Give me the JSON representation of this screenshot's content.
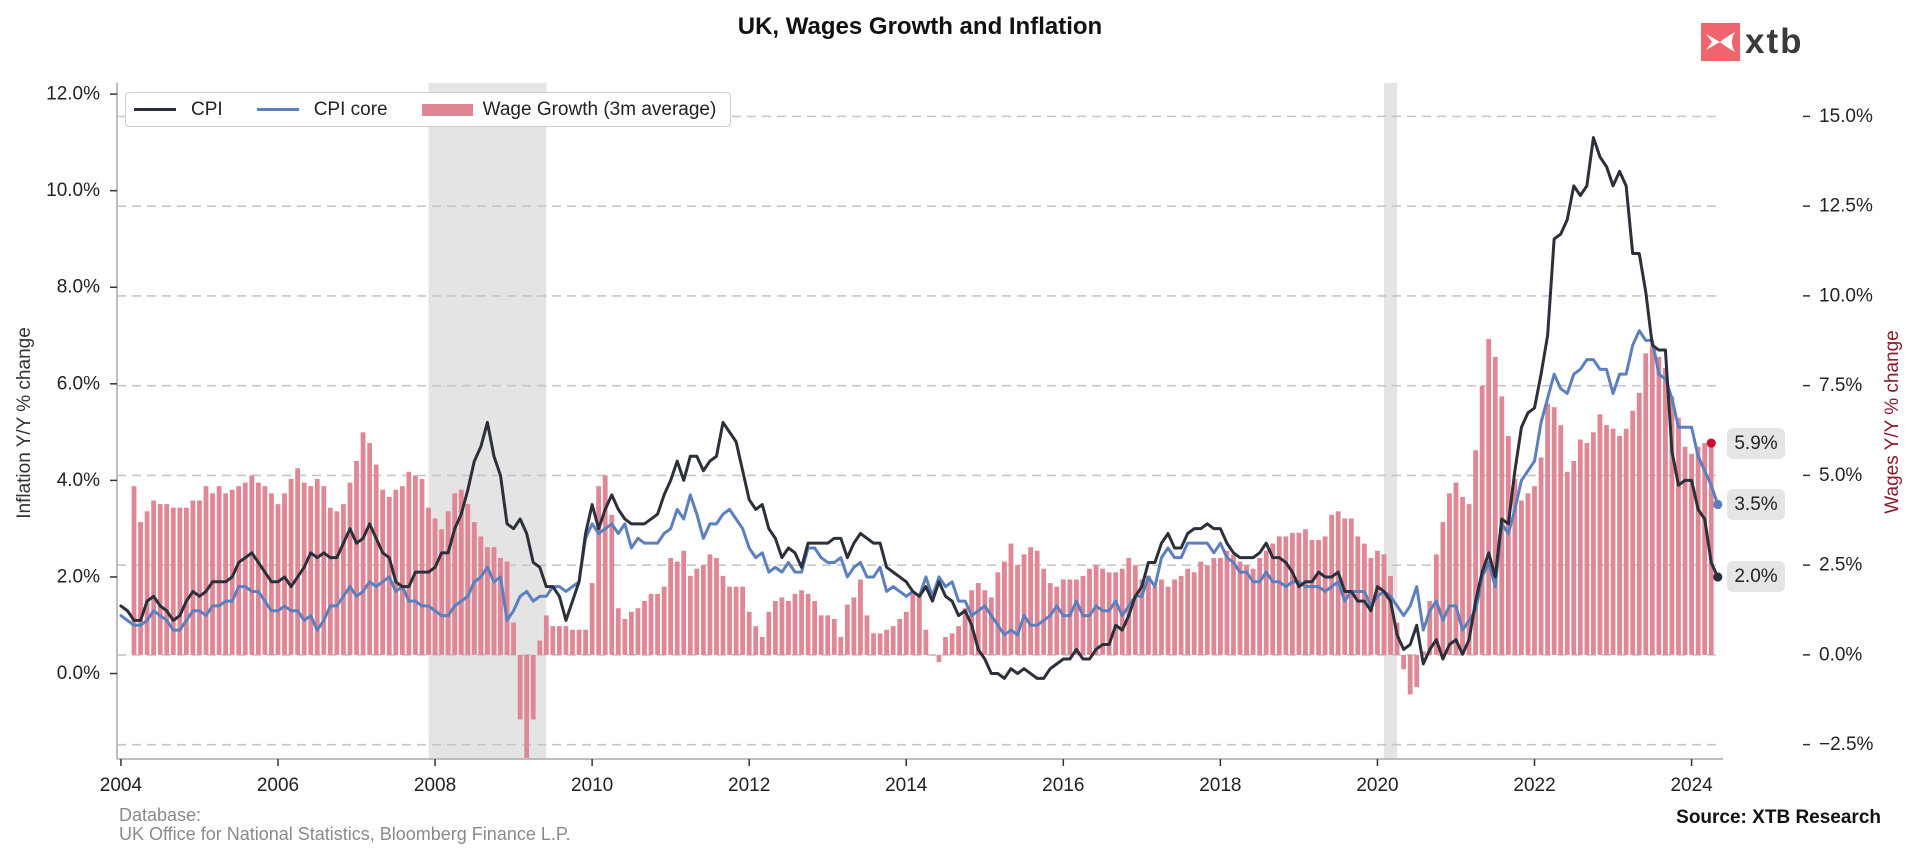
{
  "title": "UK, Wages Growth and Inflation",
  "logo": {
    "text": "xtb",
    "icon": "xtb-logo-icon",
    "color": "#f0646d"
  },
  "footer": {
    "database_label": "Database:",
    "database_sources": "UK Office for National Statistics, Bloomberg Finance L.P.",
    "source": "Source: XTB Research"
  },
  "chart_data": {
    "type": "line",
    "title": "UK, Wages Growth and Inflation",
    "xlabel": "",
    "ylabel": "Inflation Y/Y % change",
    "ylabel_right": "Wages Y/Y % change",
    "ylabel_right_color": "#8b1a2b",
    "xlim": [
      2003.95,
      2024.4
    ],
    "ylim_left": [
      -1.77,
      12.23
    ],
    "ylim_right": [
      -2.9,
      15.93
    ],
    "grid": "horizontal dashed lines at right-axis ticks",
    "legend_position": "top-left",
    "shade_color": "#e4e4e4",
    "shaded_periods": [
      {
        "start": "2007-12",
        "end": "2009-06"
      },
      {
        "start": "2020-02",
        "end": "2020-04"
      }
    ],
    "xticks": [
      {
        "value": 2004,
        "label": "2004"
      },
      {
        "value": 2006,
        "label": "2006"
      },
      {
        "value": 2008,
        "label": "2008"
      },
      {
        "value": 2010,
        "label": "2010"
      },
      {
        "value": 2012,
        "label": "2012"
      },
      {
        "value": 2014,
        "label": "2014"
      },
      {
        "value": 2016,
        "label": "2016"
      },
      {
        "value": 2018,
        "label": "2018"
      },
      {
        "value": 2020,
        "label": "2020"
      },
      {
        "value": 2022,
        "label": "2022"
      },
      {
        "value": 2024,
        "label": "2024"
      }
    ],
    "yticks_left": [
      {
        "value": 12,
        "label": "12.0%"
      },
      {
        "value": 10,
        "label": "10.0%"
      },
      {
        "value": 8,
        "label": "8.0%"
      },
      {
        "value": 6,
        "label": "6.0%"
      },
      {
        "value": 4,
        "label": "4.0%"
      },
      {
        "value": 2,
        "label": "2.0%"
      },
      {
        "value": 0,
        "label": "0.0%"
      }
    ],
    "yticks_right": [
      {
        "value": 15,
        "label": "15.0%"
      },
      {
        "value": 12.5,
        "label": "12.5%"
      },
      {
        "value": 10,
        "label": "10.0%"
      },
      {
        "value": 7.5,
        "label": "7.5%"
      },
      {
        "value": 5,
        "label": "5.0%"
      },
      {
        "value": 2.5,
        "label": "2.5%"
      },
      {
        "value": 0,
        "label": "0.0%"
      },
      {
        "value": -2.5,
        "label": "−2.5%"
      }
    ],
    "x": [
      "2004-01",
      "2004-02",
      "2004-03",
      "2004-04",
      "2004-05",
      "2004-06",
      "2004-07",
      "2004-08",
      "2004-09",
      "2004-10",
      "2004-11",
      "2004-12",
      "2005-01",
      "2005-02",
      "2005-03",
      "2005-04",
      "2005-05",
      "2005-06",
      "2005-07",
      "2005-08",
      "2005-09",
      "2005-10",
      "2005-11",
      "2005-12",
      "2006-01",
      "2006-02",
      "2006-03",
      "2006-04",
      "2006-05",
      "2006-06",
      "2006-07",
      "2006-08",
      "2006-09",
      "2006-10",
      "2006-11",
      "2006-12",
      "2007-01",
      "2007-02",
      "2007-03",
      "2007-04",
      "2007-05",
      "2007-06",
      "2007-07",
      "2007-08",
      "2007-09",
      "2007-10",
      "2007-11",
      "2007-12",
      "2008-01",
      "2008-02",
      "2008-03",
      "2008-04",
      "2008-05",
      "2008-06",
      "2008-07",
      "2008-08",
      "2008-09",
      "2008-10",
      "2008-11",
      "2008-12",
      "2009-01",
      "2009-02",
      "2009-03",
      "2009-04",
      "2009-05",
      "2009-06",
      "2009-07",
      "2009-08",
      "2009-09",
      "2009-10",
      "2009-11",
      "2009-12",
      "2010-01",
      "2010-02",
      "2010-03",
      "2010-04",
      "2010-05",
      "2010-06",
      "2010-07",
      "2010-08",
      "2010-09",
      "2010-10",
      "2010-11",
      "2010-12",
      "2011-01",
      "2011-02",
      "2011-03",
      "2011-04",
      "2011-05",
      "2011-06",
      "2011-07",
      "2011-08",
      "2011-09",
      "2011-10",
      "2011-11",
      "2011-12",
      "2012-01",
      "2012-02",
      "2012-03",
      "2012-04",
      "2012-05",
      "2012-06",
      "2012-07",
      "2012-08",
      "2012-09",
      "2012-10",
      "2012-11",
      "2012-12",
      "2013-01",
      "2013-02",
      "2013-03",
      "2013-04",
      "2013-05",
      "2013-06",
      "2013-07",
      "2013-08",
      "2013-09",
      "2013-10",
      "2013-11",
      "2013-12",
      "2014-01",
      "2014-02",
      "2014-03",
      "2014-04",
      "2014-05",
      "2014-06",
      "2014-07",
      "2014-08",
      "2014-09",
      "2014-10",
      "2014-11",
      "2014-12",
      "2015-01",
      "2015-02",
      "2015-03",
      "2015-04",
      "2015-05",
      "2015-06",
      "2015-07",
      "2015-08",
      "2015-09",
      "2015-10",
      "2015-11",
      "2015-12",
      "2016-01",
      "2016-02",
      "2016-03",
      "2016-04",
      "2016-05",
      "2016-06",
      "2016-07",
      "2016-08",
      "2016-09",
      "2016-10",
      "2016-11",
      "2016-12",
      "2017-01",
      "2017-02",
      "2017-03",
      "2017-04",
      "2017-05",
      "2017-06",
      "2017-07",
      "2017-08",
      "2017-09",
      "2017-10",
      "2017-11",
      "2017-12",
      "2018-01",
      "2018-02",
      "2018-03",
      "2018-04",
      "2018-05",
      "2018-06",
      "2018-07",
      "2018-08",
      "2018-09",
      "2018-10",
      "2018-11",
      "2018-12",
      "2019-01",
      "2019-02",
      "2019-03",
      "2019-04",
      "2019-05",
      "2019-06",
      "2019-07",
      "2019-08",
      "2019-09",
      "2019-10",
      "2019-11",
      "2019-12",
      "2020-01",
      "2020-02",
      "2020-03",
      "2020-04",
      "2020-05",
      "2020-06",
      "2020-07",
      "2020-08",
      "2020-09",
      "2020-10",
      "2020-11",
      "2020-12",
      "2021-01",
      "2021-02",
      "2021-03",
      "2021-04",
      "2021-05",
      "2021-06",
      "2021-07",
      "2021-08",
      "2021-09",
      "2021-10",
      "2021-11",
      "2021-12",
      "2022-01",
      "2022-02",
      "2022-03",
      "2022-04",
      "2022-05",
      "2022-06",
      "2022-07",
      "2022-08",
      "2022-09",
      "2022-10",
      "2022-11",
      "2022-12",
      "2023-01",
      "2023-02",
      "2023-03",
      "2023-04",
      "2023-05",
      "2023-06",
      "2023-07",
      "2023-08",
      "2023-09",
      "2023-10",
      "2023-11",
      "2023-12",
      "2024-01",
      "2024-02",
      "2024-03",
      "2024-04",
      "2024-05"
    ],
    "series": [
      {
        "name": "CPI",
        "type": "line",
        "axis": "left",
        "color": "#2b303b",
        "end_marker_color": "#2b303b",
        "values": [
          1.4,
          1.3,
          1.1,
          1.1,
          1.5,
          1.6,
          1.4,
          1.3,
          1.1,
          1.2,
          1.5,
          1.7,
          1.6,
          1.7,
          1.9,
          1.9,
          1.9,
          2.0,
          2.3,
          2.4,
          2.5,
          2.3,
          2.1,
          1.9,
          1.9,
          2.0,
          1.8,
          2.0,
          2.2,
          2.5,
          2.4,
          2.5,
          2.4,
          2.4,
          2.7,
          3.0,
          2.7,
          2.8,
          3.1,
          2.8,
          2.5,
          2.4,
          1.9,
          1.8,
          1.8,
          2.1,
          2.1,
          2.1,
          2.2,
          2.5,
          2.5,
          3.0,
          3.3,
          3.8,
          4.4,
          4.7,
          5.2,
          4.5,
          4.1,
          3.1,
          3.0,
          3.2,
          2.9,
          2.3,
          2.2,
          1.8,
          1.8,
          1.6,
          1.1,
          1.5,
          1.9,
          2.9,
          3.5,
          3.0,
          3.4,
          3.7,
          3.4,
          3.2,
          3.1,
          3.1,
          3.1,
          3.2,
          3.3,
          3.7,
          4.0,
          4.4,
          4.0,
          4.5,
          4.5,
          4.2,
          4.4,
          4.5,
          5.2,
          5.0,
          4.8,
          4.2,
          3.6,
          3.4,
          3.5,
          3.0,
          2.8,
          2.4,
          2.6,
          2.5,
          2.2,
          2.7,
          2.7,
          2.7,
          2.7,
          2.8,
          2.8,
          2.4,
          2.7,
          2.9,
          2.8,
          2.7,
          2.7,
          2.2,
          2.1,
          2.0,
          1.9,
          1.7,
          1.6,
          1.8,
          1.5,
          1.9,
          1.6,
          1.5,
          1.2,
          1.3,
          1.0,
          0.5,
          0.3,
          0.0,
          0.0,
          -0.1,
          0.1,
          0.0,
          0.1,
          0.0,
          -0.1,
          -0.1,
          0.1,
          0.2,
          0.3,
          0.3,
          0.5,
          0.3,
          0.3,
          0.5,
          0.6,
          0.6,
          1.0,
          0.9,
          1.2,
          1.6,
          1.8,
          2.3,
          2.3,
          2.7,
          2.9,
          2.6,
          2.6,
          2.9,
          3.0,
          3.0,
          3.1,
          3.0,
          3.0,
          2.7,
          2.5,
          2.4,
          2.4,
          2.4,
          2.5,
          2.7,
          2.4,
          2.4,
          2.3,
          2.1,
          1.8,
          1.9,
          1.9,
          2.1,
          2.0,
          2.0,
          2.1,
          1.7,
          1.7,
          1.5,
          1.5,
          1.3,
          1.8,
          1.7,
          1.5,
          0.8,
          0.5,
          0.6,
          1.0,
          0.2,
          0.5,
          0.7,
          0.3,
          0.6,
          0.7,
          0.4,
          0.7,
          1.5,
          2.1,
          2.5,
          2.0,
          3.2,
          3.1,
          4.2,
          5.1,
          5.4,
          5.5,
          6.2,
          7.0,
          9.0,
          9.1,
          9.4,
          10.1,
          9.9,
          10.1,
          11.1,
          10.7,
          10.5,
          10.1,
          10.4,
          10.1,
          8.7,
          8.7,
          7.9,
          6.8,
          6.7,
          6.7,
          4.6,
          3.9,
          4.0,
          4.0,
          3.4,
          3.2,
          2.3,
          2.0
        ]
      },
      {
        "name": "CPI core",
        "type": "line",
        "axis": "left",
        "color": "#5b80bd",
        "end_marker_color": "#5b80bd",
        "values": [
          1.2,
          1.1,
          1.0,
          1.0,
          1.1,
          1.3,
          1.2,
          1.1,
          0.9,
          0.9,
          1.1,
          1.3,
          1.3,
          1.2,
          1.4,
          1.4,
          1.5,
          1.5,
          1.8,
          1.8,
          1.7,
          1.7,
          1.5,
          1.3,
          1.3,
          1.4,
          1.3,
          1.3,
          1.1,
          1.2,
          0.9,
          1.1,
          1.4,
          1.4,
          1.6,
          1.8,
          1.6,
          1.7,
          1.9,
          1.8,
          1.9,
          2.0,
          1.7,
          1.8,
          1.5,
          1.5,
          1.4,
          1.4,
          1.3,
          1.2,
          1.2,
          1.4,
          1.5,
          1.6,
          1.9,
          2.0,
          2.2,
          1.9,
          2.0,
          1.1,
          1.3,
          1.6,
          1.7,
          1.5,
          1.6,
          1.6,
          1.8,
          1.8,
          1.7,
          1.8,
          1.9,
          2.8,
          3.1,
          2.9,
          3.0,
          3.1,
          2.9,
          3.1,
          2.6,
          2.8,
          2.7,
          2.7,
          2.7,
          2.9,
          3.0,
          3.4,
          3.2,
          3.7,
          3.3,
          2.8,
          3.1,
          3.1,
          3.3,
          3.4,
          3.2,
          3.0,
          2.6,
          2.4,
          2.5,
          2.1,
          2.2,
          2.1,
          2.3,
          2.1,
          2.1,
          2.6,
          2.6,
          2.4,
          2.3,
          2.3,
          2.4,
          2.0,
          2.2,
          2.3,
          2.0,
          2.0,
          2.2,
          1.7,
          1.8,
          1.7,
          1.6,
          1.7,
          1.6,
          2.0,
          1.6,
          2.0,
          1.8,
          1.9,
          1.5,
          1.5,
          1.2,
          1.3,
          1.4,
          1.2,
          1.0,
          0.8,
          0.9,
          0.8,
          1.2,
          1.0,
          1.0,
          1.1,
          1.2,
          1.4,
          1.2,
          1.2,
          1.5,
          1.2,
          1.2,
          1.4,
          1.3,
          1.3,
          1.5,
          1.2,
          1.4,
          1.6,
          1.6,
          2.0,
          1.8,
          2.4,
          2.6,
          2.4,
          2.4,
          2.7,
          2.7,
          2.7,
          2.7,
          2.5,
          2.7,
          2.4,
          2.3,
          2.1,
          2.1,
          1.9,
          1.9,
          2.1,
          1.9,
          1.9,
          1.8,
          1.9,
          1.9,
          1.8,
          1.8,
          1.8,
          1.7,
          1.8,
          1.9,
          1.5,
          1.7,
          1.7,
          1.7,
          1.4,
          1.6,
          1.7,
          1.6,
          1.4,
          1.2,
          1.4,
          1.8,
          0.9,
          1.3,
          1.5,
          1.1,
          1.4,
          1.4,
          0.9,
          1.1,
          1.3,
          2.0,
          2.3,
          1.8,
          3.1,
          2.9,
          3.4,
          4.0,
          4.2,
          4.4,
          5.2,
          5.7,
          6.2,
          5.9,
          5.8,
          6.2,
          6.3,
          6.5,
          6.5,
          6.3,
          6.3,
          5.8,
          6.2,
          6.2,
          6.8,
          7.1,
          6.9,
          6.9,
          6.2,
          6.1,
          5.7,
          5.1,
          5.1,
          5.1,
          4.5,
          4.2,
          3.9,
          3.5
        ]
      },
      {
        "name": "Wage Growth (3m average)",
        "type": "bar",
        "axis": "right",
        "color": "#df8795",
        "end_marker_color": "#c8102e",
        "values": [
          null,
          null,
          4.7,
          3.7,
          4.0,
          4.3,
          4.2,
          4.2,
          4.1,
          4.1,
          4.1,
          4.3,
          4.3,
          4.7,
          4.5,
          4.7,
          4.5,
          4.6,
          4.7,
          4.8,
          5.0,
          4.8,
          4.7,
          4.5,
          4.2,
          4.5,
          4.9,
          5.2,
          4.8,
          4.7,
          4.9,
          4.7,
          4.1,
          4.0,
          4.2,
          4.8,
          5.4,
          6.2,
          5.9,
          5.3,
          4.6,
          4.4,
          4.6,
          4.7,
          5.1,
          5.0,
          4.9,
          4.1,
          3.8,
          3.5,
          4.0,
          4.5,
          4.6,
          4.2,
          3.7,
          3.3,
          3.0,
          3.0,
          2.7,
          2.6,
          0.9,
          -1.8,
          -3.0,
          -1.8,
          0.4,
          1.1,
          0.8,
          0.8,
          0.8,
          0.7,
          0.7,
          0.7,
          2.0,
          4.7,
          5.0,
          3.9,
          1.3,
          1.0,
          1.2,
          1.3,
          1.5,
          1.7,
          1.7,
          1.9,
          2.7,
          2.6,
          2.9,
          2.2,
          2.4,
          2.5,
          2.8,
          2.7,
          2.2,
          1.9,
          1.9,
          1.9,
          1.2,
          0.8,
          0.5,
          1.2,
          1.5,
          1.6,
          1.5,
          1.7,
          1.8,
          1.7,
          1.5,
          1.1,
          1.1,
          1.0,
          0.5,
          1.4,
          1.6,
          2.1,
          1.1,
          0.6,
          0.6,
          0.7,
          0.8,
          1.0,
          1.2,
          1.7,
          1.7,
          0.7,
          0.0,
          -0.2,
          0.5,
          0.6,
          0.8,
          1.3,
          1.8,
          2.0,
          1.8,
          1.6,
          2.3,
          2.6,
          3.1,
          2.5,
          2.8,
          3.0,
          2.9,
          2.4,
          2.0,
          1.9,
          2.1,
          2.1,
          2.1,
          2.2,
          2.4,
          2.5,
          2.4,
          2.3,
          2.3,
          2.4,
          2.7,
          2.5,
          2.1,
          2.2,
          1.9,
          2.1,
          1.9,
          2.1,
          2.2,
          2.4,
          2.3,
          2.6,
          2.5,
          2.7,
          2.7,
          2.9,
          2.8,
          2.6,
          2.5,
          2.4,
          2.7,
          2.9,
          3.1,
          3.3,
          3.3,
          3.4,
          3.4,
          3.5,
          3.2,
          3.2,
          3.3,
          3.9,
          4.0,
          3.8,
          3.8,
          3.3,
          3.1,
          2.7,
          2.9,
          2.8,
          2.2,
          0.9,
          -0.4,
          -1.1,
          -0.9,
          0.1,
          1.5,
          2.8,
          3.7,
          4.5,
          4.8,
          4.4,
          4.2,
          5.7,
          7.5,
          8.8,
          8.3,
          7.2,
          6.1,
          4.9,
          4.3,
          4.5,
          4.7,
          5.5,
          7.0,
          6.9,
          6.4,
          5.1,
          5.4,
          6.0,
          5.9,
          6.2,
          6.7,
          6.4,
          6.3,
          6.1,
          6.3,
          6.8,
          7.3,
          8.4,
          8.6,
          8.3,
          8.0,
          7.2,
          6.6,
          5.8,
          5.6,
          5.8,
          5.9,
          5.9,
          null
        ]
      }
    ],
    "end_labels": [
      {
        "series": "Wage Growth (3m average)",
        "axis": "right",
        "value": 5.9,
        "text": "5.9%"
      },
      {
        "series": "CPI core",
        "axis": "left",
        "value": 3.5,
        "text": "3.5%"
      },
      {
        "series": "CPI",
        "axis": "left",
        "value": 2.0,
        "text": "2.0%"
      }
    ]
  }
}
